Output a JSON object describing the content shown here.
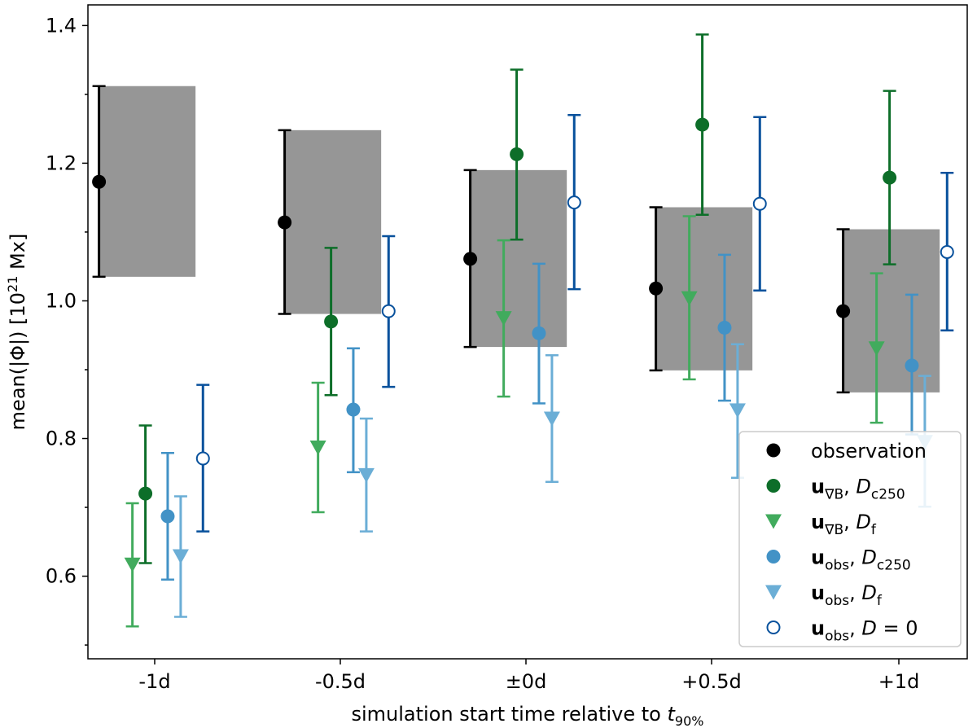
{
  "chart_data": {
    "type": "scatter",
    "xlabel": "simulation start time relative to t90%",
    "xlabel_parts": {
      "main": "simulation start time relative to ",
      "var": "t",
      "sub": "90%"
    },
    "ylabel": "mean(|Φ|) [10^21 Mx]",
    "ylabel_parts": {
      "pre": "mean(|Φ|) [10",
      "sup": "21",
      "post": " Mx]"
    },
    "categories": [
      "-1d",
      "-0.5d",
      "±0d",
      "+0.5d",
      "+1d"
    ],
    "ylim": [
      0.48,
      1.43
    ],
    "y_ticks": [
      0.6,
      0.8,
      1.0,
      1.2,
      1.4
    ],
    "y_tick_labels": [
      "0.6",
      "0.8",
      "1.0",
      "1.2",
      "1.4"
    ],
    "legend_position": "bottom-right",
    "observation_bands": [
      {
        "category": "-1d",
        "low": 1.035,
        "high": 1.312
      },
      {
        "category": "-0.5d",
        "low": 0.981,
        "high": 1.248
      },
      {
        "category": "±0d",
        "low": 0.933,
        "high": 1.19
      },
      {
        "category": "+0.5d",
        "low": 0.899,
        "high": 1.136
      },
      {
        "category": "+1d",
        "low": 0.867,
        "high": 1.104
      }
    ],
    "series": [
      {
        "key": "observation",
        "name": "observation",
        "marker": "circle",
        "filled": true,
        "color": "#000000",
        "offset": -0.3,
        "values": [
          1.173,
          1.114,
          1.061,
          1.018,
          0.985
        ],
        "lower": [
          1.035,
          0.981,
          0.933,
          0.899,
          0.867
        ],
        "upper": [
          1.312,
          1.248,
          1.19,
          1.136,
          1.104
        ]
      },
      {
        "key": "ugradB_Dc250",
        "name": "u∇B, Dc250",
        "legend": {
          "vec": "u",
          "vecsub": "∇B",
          "var": "D",
          "varsub": "c250"
        },
        "marker": "circle",
        "filled": true,
        "color": "#0d6e29",
        "offset": -0.05,
        "values": [
          0.72,
          0.97,
          1.213,
          1.256,
          1.179
        ],
        "lower": [
          0.619,
          0.863,
          1.089,
          1.125,
          1.053
        ],
        "upper": [
          0.819,
          1.077,
          1.336,
          1.387,
          1.305
        ]
      },
      {
        "key": "ugradB_Df",
        "name": "u∇B, Df",
        "legend": {
          "vec": "u",
          "vecsub": "∇B",
          "var": "D",
          "varsub": "f"
        },
        "marker": "triangle-down",
        "filled": true,
        "color": "#41ab5d",
        "offset": -0.12,
        "values": [
          0.617,
          0.787,
          0.975,
          1.004,
          0.931
        ],
        "lower": [
          0.527,
          0.693,
          0.861,
          0.886,
          0.823
        ],
        "upper": [
          0.706,
          0.881,
          1.088,
          1.123,
          1.04
        ]
      },
      {
        "key": "uobs_Dc250",
        "name": "uobs, Dc250",
        "legend": {
          "vec": "u",
          "vecsub": "obs",
          "var": "D",
          "varsub": "c250"
        },
        "marker": "circle",
        "filled": true,
        "color": "#4292c6",
        "offset": 0.07,
        "values": [
          0.687,
          0.842,
          0.953,
          0.961,
          0.906
        ],
        "lower": [
          0.595,
          0.751,
          0.851,
          0.855,
          0.806
        ],
        "upper": [
          0.779,
          0.931,
          1.054,
          1.067,
          1.009
        ]
      },
      {
        "key": "uobs_Df",
        "name": "uobs, Df",
        "legend": {
          "vec": "u",
          "vecsub": "obs",
          "var": "D",
          "varsub": "f"
        },
        "marker": "triangle-down",
        "filled": true,
        "color": "#6baed6",
        "offset": 0.14,
        "values": [
          0.629,
          0.747,
          0.829,
          0.841,
          0.795
        ],
        "lower": [
          0.541,
          0.665,
          0.737,
          0.743,
          0.701
        ],
        "upper": [
          0.716,
          0.829,
          0.921,
          0.937,
          0.891
        ]
      },
      {
        "key": "uobs_D0",
        "name": "uobs, D = 0",
        "legend": {
          "vec": "u",
          "vecsub": "obs",
          "var": "D",
          "varsub": "",
          "suffix": " = 0"
        },
        "marker": "circle",
        "filled": false,
        "color": "#08519c",
        "offset": 0.26,
        "values": [
          0.771,
          0.985,
          1.143,
          1.141,
          1.071
        ],
        "lower": [
          0.665,
          0.875,
          1.017,
          1.015,
          0.957
        ],
        "upper": [
          0.878,
          1.094,
          1.27,
          1.267,
          1.186
        ]
      }
    ]
  }
}
